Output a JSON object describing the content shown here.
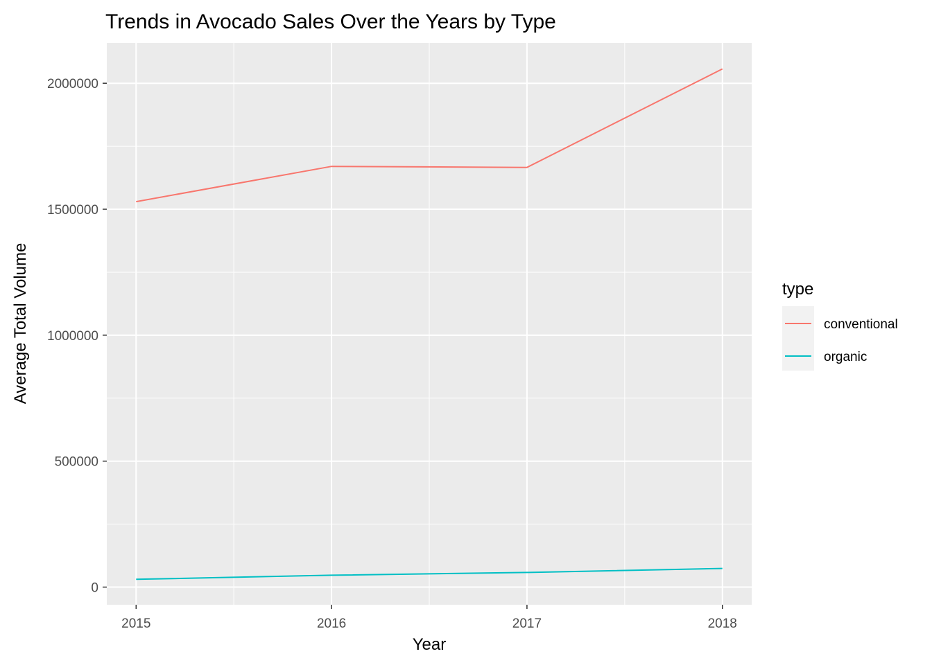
{
  "chart_data": {
    "type": "line",
    "title": "Trends in Avocado Sales Over the Years by Type",
    "xlabel": "Year",
    "ylabel": "Average Total Volume",
    "x": [
      2015,
      2016,
      2017,
      2018
    ],
    "xlim": [
      2014.85,
      2018.15
    ],
    "ylim": [
      -70000,
      2160000
    ],
    "x_ticks": [
      2015,
      2016,
      2017,
      2018
    ],
    "x_tick_labels": [
      "2015",
      "2016",
      "2017",
      "2018"
    ],
    "y_ticks": [
      0,
      500000,
      1000000,
      1500000,
      2000000
    ],
    "y_tick_labels": [
      "0",
      "500000",
      "1000000",
      "1500000",
      "2000000"
    ],
    "grid": true,
    "legend": {
      "title": "type",
      "placement": "right"
    },
    "series": [
      {
        "name": "conventional",
        "color": "#F8766D",
        "values": [
          1530000,
          1670000,
          1666000,
          2057000
        ]
      },
      {
        "name": "organic",
        "color": "#00BFC4",
        "values": [
          31000,
          47000,
          58000,
          74000
        ]
      }
    ],
    "panel_background": "#EBEBEB",
    "grid_color": "#FFFFFF"
  }
}
